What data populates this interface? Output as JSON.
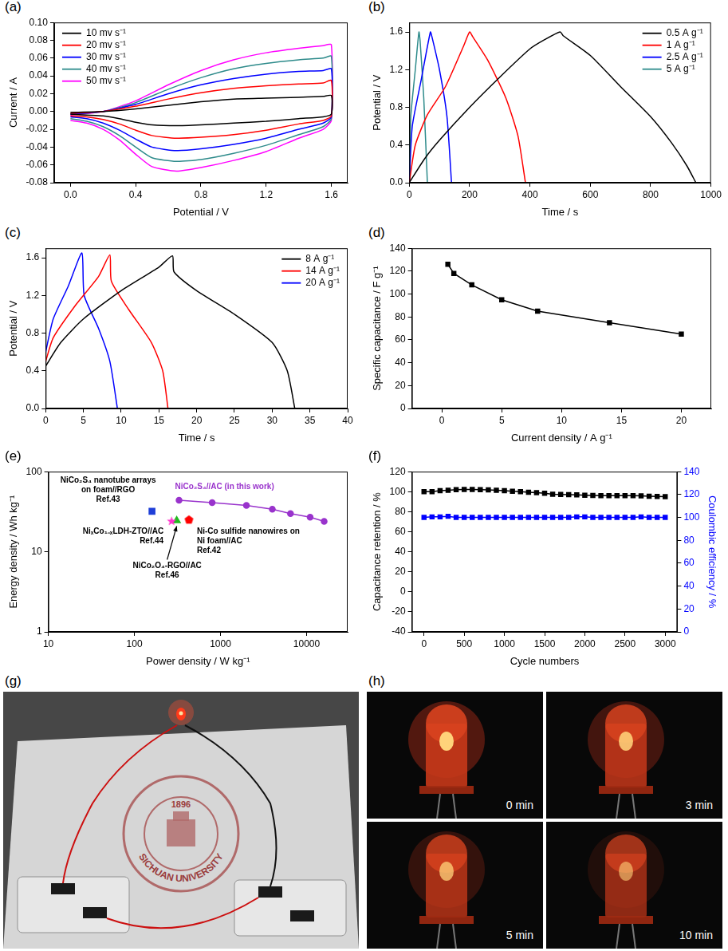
{
  "chart_data": [
    {
      "panel": "(a)",
      "type": "line",
      "xlabel": "Potential / V",
      "ylabel": "Current / A",
      "xlim": [
        -0.1,
        1.7
      ],
      "ylim": [
        -0.08,
        0.1
      ],
      "xticks": [
        {
          "value": 0,
          "label": "0.0"
        },
        0.4,
        0.8,
        1.2,
        1.6
      ],
      "yticks": [
        -0.08,
        -0.06,
        -0.04,
        -0.02,
        {
          "value": 0,
          "label": "0.00"
        },
        0.02,
        0.04,
        0.06,
        0.08,
        {
          "value": 0.1,
          "label": "0.10"
        }
      ],
      "grid": false,
      "legend": "upper left",
      "series": [
        {
          "name": "10 mv s⁻¹",
          "color": "#000000",
          "line_style": "solid",
          "x": [
            0,
            0.2,
            0.4,
            0.6,
            0.8,
            1.0,
            1.2,
            1.4,
            1.55,
            1.6,
            1.6,
            1.55,
            1.4,
            1.2,
            1.0,
            0.8,
            0.65,
            0.5,
            0.4,
            0.3,
            0.2,
            0.1,
            0
          ],
          "values": [
            -0.001,
            0.0,
            0.003,
            0.007,
            0.011,
            0.014,
            0.015,
            0.016,
            0.017,
            0.018,
            -0.003,
            -0.006,
            -0.008,
            -0.011,
            -0.013,
            -0.015,
            -0.016,
            -0.015,
            -0.012,
            -0.008,
            -0.005,
            -0.004,
            -0.003
          ]
        },
        {
          "name": "20 mv s⁻¹",
          "color": "#ff0000",
          "line_style": "solid",
          "x": [
            0,
            0.2,
            0.4,
            0.6,
            0.8,
            1.0,
            1.2,
            1.4,
            1.55,
            1.6,
            1.6,
            1.55,
            1.4,
            1.2,
            1.0,
            0.8,
            0.65,
            0.5,
            0.4,
            0.3,
            0.2,
            0.1,
            0
          ],
          "values": [
            -0.002,
            0.0,
            0.006,
            0.014,
            0.021,
            0.026,
            0.029,
            0.031,
            0.032,
            0.035,
            -0.005,
            -0.01,
            -0.014,
            -0.021,
            -0.026,
            -0.029,
            -0.03,
            -0.027,
            -0.021,
            -0.014,
            -0.009,
            -0.006,
            -0.005
          ]
        },
        {
          "name": "30 mv s⁻¹",
          "color": "#0000ff",
          "line_style": "solid",
          "x": [
            0,
            0.2,
            0.4,
            0.6,
            0.8,
            1.0,
            1.2,
            1.4,
            1.55,
            1.6,
            1.6,
            1.55,
            1.4,
            1.2,
            1.0,
            0.8,
            0.65,
            0.5,
            0.4,
            0.3,
            0.2,
            0.1,
            0
          ],
          "values": [
            -0.003,
            0.0,
            0.008,
            0.02,
            0.03,
            0.037,
            0.042,
            0.045,
            0.046,
            0.048,
            -0.006,
            -0.013,
            -0.02,
            -0.03,
            -0.037,
            -0.042,
            -0.044,
            -0.04,
            -0.031,
            -0.021,
            -0.013,
            -0.008,
            -0.006
          ]
        },
        {
          "name": "40 mv s⁻¹",
          "color": "#2e8b8b",
          "line_style": "solid",
          "x": [
            0,
            0.2,
            0.4,
            0.6,
            0.8,
            1.0,
            1.2,
            1.4,
            1.55,
            1.6,
            1.6,
            1.55,
            1.4,
            1.2,
            1.0,
            0.8,
            0.65,
            0.5,
            0.4,
            0.3,
            0.2,
            0.1,
            0
          ],
          "values": [
            -0.003,
            0.0,
            0.01,
            0.025,
            0.038,
            0.048,
            0.054,
            0.058,
            0.06,
            0.062,
            -0.008,
            -0.017,
            -0.026,
            -0.038,
            -0.047,
            -0.054,
            -0.056,
            -0.052,
            -0.04,
            -0.027,
            -0.017,
            -0.011,
            -0.008
          ]
        },
        {
          "name": "50 mv s⁻¹",
          "color": "#ff00ff",
          "line_style": "solid",
          "x": [
            0,
            0.2,
            0.4,
            0.6,
            0.8,
            1.0,
            1.2,
            1.4,
            1.55,
            1.6,
            1.6,
            1.55,
            1.4,
            1.2,
            1.0,
            0.8,
            0.65,
            0.5,
            0.4,
            0.3,
            0.2,
            0.1,
            0
          ],
          "values": [
            -0.004,
            0.0,
            0.012,
            0.03,
            0.046,
            0.058,
            0.066,
            0.071,
            0.074,
            0.075,
            -0.01,
            -0.02,
            -0.03,
            -0.045,
            -0.055,
            -0.063,
            -0.067,
            -0.062,
            -0.048,
            -0.032,
            -0.02,
            -0.013,
            -0.01
          ]
        }
      ]
    },
    {
      "panel": "(b)",
      "type": "line",
      "xlabel": "Time / s",
      "ylabel": "Potential / V",
      "xlim": [
        0,
        1000
      ],
      "ylim": [
        0,
        1.7
      ],
      "xticks": [
        0,
        200,
        400,
        600,
        800,
        1000
      ],
      "yticks": [
        {
          "value": 0,
          "label": "0.0"
        },
        0.4,
        0.8,
        1.2,
        1.6
      ],
      "grid": false,
      "legend": "upper right",
      "series": [
        {
          "name": "0.5 A g⁻¹",
          "color": "#000000",
          "line_style": "solid",
          "x": [
            0,
            50,
            100,
            200,
            300,
            400,
            450,
            500,
            510,
            600,
            700,
            800,
            870,
            920,
            950
          ],
          "values": [
            0,
            0.25,
            0.45,
            0.8,
            1.12,
            1.42,
            1.52,
            1.6,
            1.56,
            1.35,
            1.02,
            0.7,
            0.42,
            0.18,
            0
          ]
        },
        {
          "name": "1 A g⁻¹",
          "color": "#ff0000",
          "line_style": "solid",
          "x": [
            0,
            20,
            60,
            120,
            180,
            200,
            210,
            260,
            320,
            360,
            385
          ],
          "values": [
            0,
            0.4,
            0.72,
            1.02,
            1.45,
            1.6,
            1.55,
            1.3,
            0.9,
            0.5,
            0
          ]
        },
        {
          "name": "2.5 A g⁻¹",
          "color": "#0000ff",
          "line_style": "solid",
          "x": [
            0,
            10,
            40,
            70,
            75,
            100,
            125,
            140
          ],
          "values": [
            0,
            0.6,
            1.1,
            1.6,
            1.55,
            1.2,
            0.7,
            0
          ]
        },
        {
          "name": "5 A g⁻¹",
          "color": "#2e8b8b",
          "line_style": "solid",
          "x": [
            0,
            5,
            20,
            32,
            36,
            48,
            60
          ],
          "values": [
            0,
            0.7,
            1.2,
            1.6,
            1.5,
            0.9,
            0
          ]
        }
      ]
    },
    {
      "panel": "(c)",
      "type": "line",
      "xlabel": "Time / s",
      "ylabel": "Potential / V",
      "xlim": [
        0,
        40
      ],
      "ylim": [
        0,
        1.7
      ],
      "xticks": [
        0,
        5,
        10,
        15,
        20,
        25,
        30,
        35,
        40
      ],
      "yticks": [
        {
          "value": 0,
          "label": "0.0"
        },
        0.4,
        0.8,
        1.2,
        1.6
      ],
      "grid": false,
      "legend": "upper right",
      "series": [
        {
          "name": "8 A g⁻¹",
          "color": "#000000",
          "line_style": "solid",
          "x": [
            0,
            2,
            5,
            10,
            15,
            16.8,
            17,
            20,
            25,
            30,
            32,
            33
          ],
          "values": [
            0.45,
            0.7,
            0.95,
            1.25,
            1.5,
            1.62,
            1.45,
            1.25,
            1.0,
            0.7,
            0.4,
            0
          ]
        },
        {
          "name": "14 A g⁻¹",
          "color": "#ff0000",
          "line_style": "solid",
          "x": [
            0,
            1,
            4,
            7,
            8.5,
            8.7,
            11,
            14,
            15.5,
            16.2
          ],
          "values": [
            0.5,
            0.75,
            1.1,
            1.4,
            1.63,
            1.35,
            1.05,
            0.7,
            0.4,
            0
          ]
        },
        {
          "name": "20 A g⁻¹",
          "color": "#0000ff",
          "line_style": "solid",
          "x": [
            0,
            1,
            3,
            4.8,
            5.1,
            7,
            8.5,
            9.5
          ],
          "values": [
            0.6,
            0.95,
            1.3,
            1.65,
            1.2,
            0.85,
            0.5,
            0
          ]
        }
      ]
    },
    {
      "panel": "(d)",
      "type": "line",
      "xlabel": "Current density / A g⁻¹",
      "ylabel": "Specific capacitance / F g⁻¹",
      "xlim": [
        -2.5,
        22.5
      ],
      "ylim": [
        0,
        140
      ],
      "xticks": [
        0,
        5,
        10,
        15,
        20
      ],
      "yticks": [
        0,
        20,
        40,
        60,
        80,
        100,
        120,
        140
      ],
      "grid": false,
      "x": [
        0.5,
        1,
        2.5,
        5,
        8,
        14,
        20
      ],
      "values": [
        126,
        118,
        108,
        95,
        85,
        75,
        65
      ],
      "color": "#000000",
      "marker": "square",
      "line_style": "solid"
    },
    {
      "panel": "(e)",
      "type": "scatter",
      "xlabel": "Power density / W kg⁻¹",
      "ylabel": "Energy density / Wh kg⁻¹",
      "log": true,
      "xlim": [
        10,
        30000
      ],
      "ylim": [
        1,
        100
      ],
      "xticks": [
        10,
        100,
        1000,
        10000
      ],
      "yticks": [
        1,
        10,
        100
      ],
      "grid": false,
      "series": [
        {
          "name": "NiCo₂S₄//AC (in this work)",
          "color": "#9933cc",
          "marker": "circle",
          "line_style": "solid",
          "x": [
            330,
            800,
            2000,
            4000,
            6500,
            11000,
            16000
          ],
          "values": [
            44,
            41,
            38,
            34,
            30,
            27,
            24
          ]
        },
        {
          "name": "NiCo₂S₄ nanotube arrays on foam//RGO",
          "reference": "Ref.43",
          "color": "#1f3fd8",
          "marker": "square",
          "line_style": "none",
          "x": [
            160
          ],
          "values": [
            32
          ]
        },
        {
          "name": "NiₓCo₁₋ₓLDH-ZTO//AC",
          "reference": "Ref.44",
          "color": "#ff33cc",
          "marker": "star",
          "line_style": "none",
          "x": [
            270
          ],
          "values": [
            24
          ]
        },
        {
          "name": "NiCo₂O₄-RGO//AC",
          "reference": "Ref.46",
          "color": "#22bb22",
          "marker": "triangle",
          "line_style": "none",
          "x": [
            310
          ],
          "values": [
            24.5
          ]
        },
        {
          "name": "Ni-Co sulfide nanowires on Ni foam//AC",
          "reference": "Ref.42",
          "color": "#ff0000",
          "marker": "pentagon",
          "line_style": "none",
          "x": [
            430
          ],
          "values": [
            25
          ]
        }
      ]
    },
    {
      "panel": "(f)",
      "type": "line",
      "xlabel": "Cycle numbers",
      "ylabel": "Capacitance retention / %",
      "y2label": "Coulombic efficiency / %",
      "xlim": [
        -150,
        3150
      ],
      "ylim": [
        -40,
        120
      ],
      "y2lim": [
        0,
        140
      ],
      "xticks": [
        0,
        500,
        1000,
        1500,
        2000,
        2500,
        3000
      ],
      "yticks": [
        -40,
        -20,
        0,
        20,
        40,
        60,
        80,
        100,
        120
      ],
      "y2ticks": [
        0,
        20,
        40,
        60,
        80,
        100,
        120,
        140
      ],
      "grid": false,
      "series": [
        {
          "color": "#000000",
          "marker": "square",
          "line_style": "solid",
          "axis": "y",
          "x": [
            0,
            100,
            200,
            300,
            400,
            500,
            600,
            700,
            800,
            900,
            1000,
            1100,
            1200,
            1300,
            1400,
            1500,
            1600,
            1700,
            1800,
            1900,
            2000,
            2100,
            2200,
            2300,
            2400,
            2500,
            2600,
            2700,
            2800,
            2900,
            3000
          ],
          "values": [
            100,
            100,
            101,
            101.5,
            102,
            102.2,
            102.2,
            102,
            101.8,
            101.5,
            101,
            100.5,
            100,
            99.5,
            99,
            98.5,
            97.5,
            97.2,
            97,
            96.8,
            96.5,
            96.3,
            96,
            96,
            96,
            96,
            96,
            95.8,
            95.5,
            95.3,
            95
          ]
        },
        {
          "color": "#0000ff",
          "marker": "square",
          "line_style": "solid",
          "axis": "y2",
          "x": [
            0,
            100,
            200,
            300,
            400,
            500,
            600,
            700,
            800,
            900,
            1000,
            1100,
            1200,
            1300,
            1400,
            1500,
            1600,
            1700,
            1800,
            1900,
            2000,
            2100,
            2200,
            2300,
            2400,
            2500,
            2600,
            2700,
            2800,
            2900,
            3000
          ],
          "values": [
            100,
            100.5,
            100.5,
            101,
            100,
            100,
            100,
            100,
            100,
            100,
            100,
            100,
            100,
            100,
            100,
            100,
            100,
            100,
            100,
            100.5,
            100.5,
            100,
            100,
            100,
            100,
            100,
            100,
            100.5,
            100,
            100,
            100
          ]
        }
      ]
    }
  ],
  "photos": [
    {
      "panel": "(g)",
      "texts": [
        "1896",
        "SICHUAN UNIVERSITY"
      ]
    },
    {
      "panel": "(h)",
      "captions": [
        "0 min",
        "3 min",
        "5 min",
        "10 min"
      ]
    }
  ]
}
